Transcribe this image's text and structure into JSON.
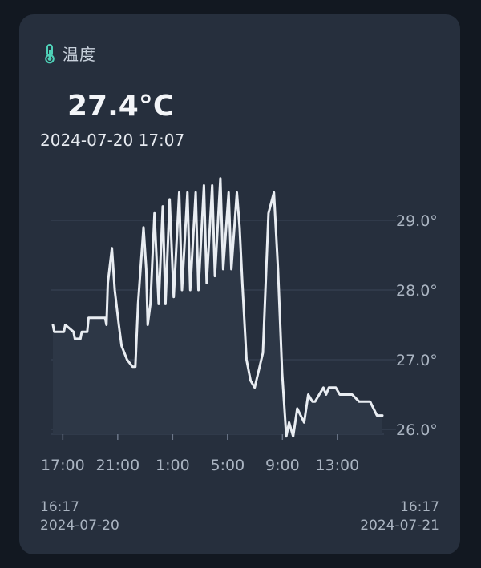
{
  "card": {
    "title": "温度",
    "icon": "thermometer-icon",
    "accent_color": "#4fd1b8",
    "current_value": "27.4°C",
    "current_time": "2024-07-20 17:07"
  },
  "range": {
    "start_time": "16:17",
    "start_date": "2024-07-20",
    "end_time": "16:17",
    "end_date": "2024-07-21"
  },
  "chart_data": {
    "type": "line",
    "title": "",
    "xlabel": "",
    "ylabel": "",
    "ylim": [
      25.95,
      29.5
    ],
    "grid": true,
    "y_ticks": [
      26.0,
      27.0,
      28.0,
      29.0
    ],
    "y_tick_labels": [
      "26.0°",
      "27.0°",
      "28.0°",
      "29.0°"
    ],
    "x_tick_labels": [
      "17:00",
      "21:00",
      "1:00",
      "5:00",
      "9:00",
      "13:00"
    ],
    "x_tick_hours": [
      0.72,
      4.72,
      8.72,
      12.72,
      16.72,
      20.72
    ],
    "line_color": "#e9edf2",
    "series": [
      {
        "x": [
          0.0,
          0.1,
          0.8,
          0.9,
          1.5,
          1.6,
          2.0,
          2.1,
          2.5,
          2.6,
          3.0,
          3.2,
          3.4,
          3.8,
          3.9,
          4.0,
          4.3,
          4.5,
          4.8,
          5.0,
          5.4,
          5.8,
          6.0,
          6.2,
          6.6,
          6.8,
          6.9,
          7.1,
          7.4,
          7.7,
          8.0,
          8.2,
          8.5,
          8.8,
          9.2,
          9.4,
          9.8,
          10.0,
          10.4,
          10.6,
          11.0,
          11.2,
          11.6,
          11.8,
          12.2,
          12.4,
          12.8,
          13.0,
          13.4,
          13.6,
          13.8,
          14.1,
          14.4,
          14.7,
          15.3,
          15.7,
          16.1,
          16.4,
          16.7,
          17.0,
          17.2,
          17.5,
          17.8,
          18.3,
          18.6,
          18.9,
          19.1,
          19.4,
          19.7,
          19.9,
          20.1,
          20.4,
          20.6,
          20.9,
          21.1,
          21.5,
          21.8,
          22.3,
          22.7,
          23.1,
          23.6,
          24.0
        ],
        "y": [
          27.5,
          27.4,
          27.4,
          27.5,
          27.4,
          27.3,
          27.3,
          27.4,
          27.4,
          27.6,
          27.6,
          27.6,
          27.6,
          27.6,
          27.5,
          28.1,
          28.6,
          28.0,
          27.5,
          27.2,
          27.0,
          26.9,
          26.9,
          27.8,
          28.9,
          28.3,
          27.5,
          27.8,
          29.1,
          27.8,
          29.2,
          27.8,
          29.3,
          27.9,
          29.4,
          28.0,
          29.4,
          28.0,
          29.4,
          28.0,
          29.5,
          28.1,
          29.5,
          28.2,
          29.6,
          28.3,
          29.4,
          28.3,
          29.4,
          28.9,
          28.1,
          27.0,
          26.7,
          26.6,
          27.1,
          29.1,
          29.4,
          28.3,
          26.8,
          25.9,
          26.1,
          25.9,
          26.3,
          26.1,
          26.5,
          26.4,
          26.4,
          26.5,
          26.6,
          26.5,
          26.6,
          26.6,
          26.6,
          26.5,
          26.5,
          26.5,
          26.5,
          26.4,
          26.4,
          26.4,
          26.2,
          26.2
        ]
      }
    ]
  }
}
